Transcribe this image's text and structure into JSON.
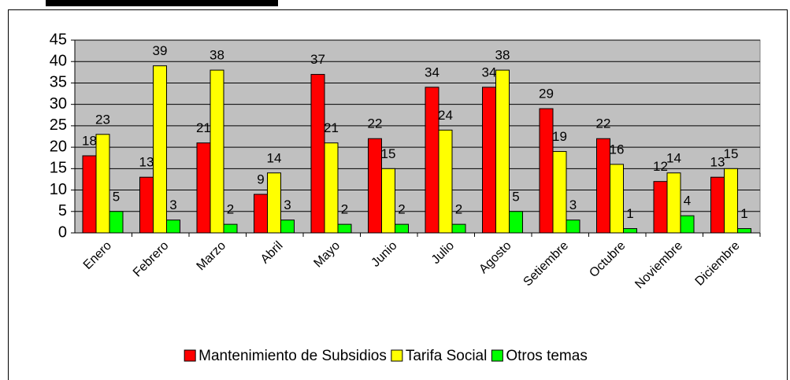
{
  "chart_data": {
    "type": "bar",
    "categories": [
      "Enero",
      "Febrero",
      "Marzo",
      "Abril",
      "Mayo",
      "Junio",
      "Julio",
      "Agosto",
      "Setiembre",
      "Octubre",
      "Noviembre",
      "Diciembre"
    ],
    "series": [
      {
        "name": "Mantenimiento de Subsidios",
        "color": "#ff0000",
        "values": [
          18,
          13,
          21,
          9,
          37,
          22,
          34,
          34,
          29,
          22,
          12,
          13
        ]
      },
      {
        "name": "Tarifa Social",
        "color": "#ffff00",
        "values": [
          23,
          39,
          38,
          14,
          21,
          15,
          24,
          38,
          19,
          16,
          14,
          15
        ]
      },
      {
        "name": "Otros temas",
        "color": "#00ff00",
        "values": [
          5,
          3,
          2,
          3,
          2,
          2,
          2,
          5,
          3,
          1,
          4,
          1
        ]
      }
    ],
    "ylim": [
      0,
      45
    ],
    "yticks": [
      0,
      5,
      10,
      15,
      20,
      25,
      30,
      35,
      40,
      45
    ],
    "grid": true,
    "legend": "bottom",
    "background": "#c0c0c0"
  }
}
